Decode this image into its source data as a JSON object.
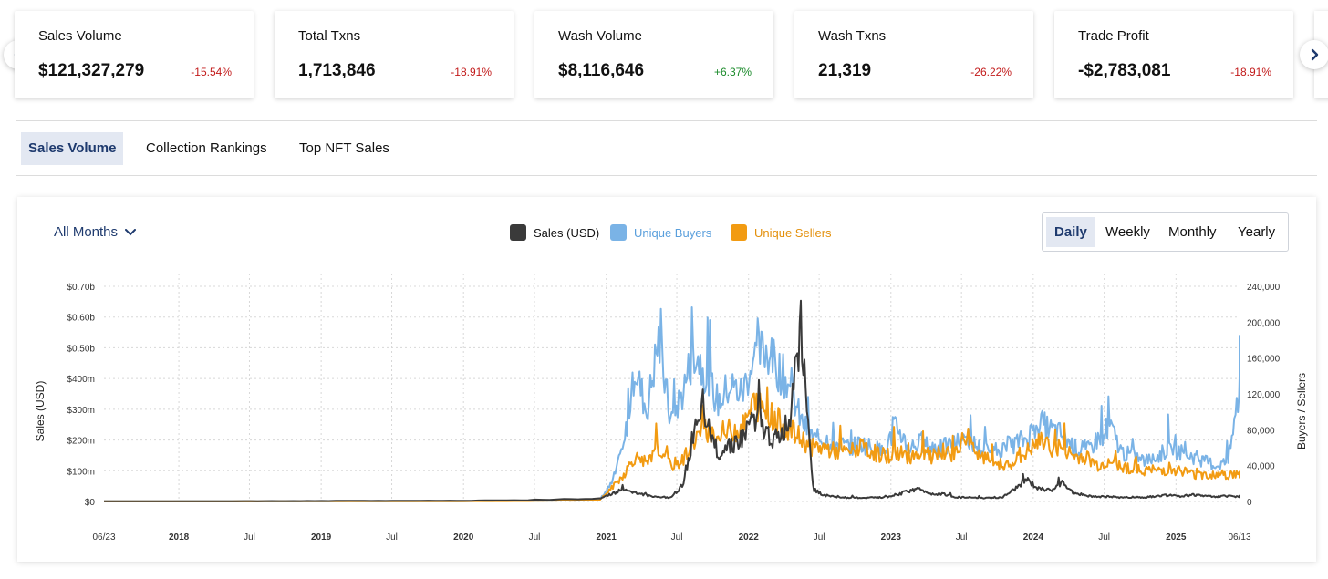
{
  "carousel": {
    "prev_icon": "chevron-left-icon",
    "next_icon": "chevron-right-icon"
  },
  "cards": [
    {
      "label": "Sales Volume",
      "value": "$121,327,279",
      "change": "-15.54%",
      "direction": "down"
    },
    {
      "label": "Total Txns",
      "value": "1,713,846",
      "change": "-18.91%",
      "direction": "down"
    },
    {
      "label": "Wash Volume",
      "value": "$8,116,646",
      "change": "+6.37%",
      "direction": "up"
    },
    {
      "label": "Wash Txns",
      "value": "21,319",
      "change": "-26.22%",
      "direction": "down"
    },
    {
      "label": "Trade Profit",
      "value": "-$2,783,081",
      "change": "-18.91%",
      "direction": "down"
    }
  ],
  "tabs": [
    "Sales Volume",
    "Collection Rankings",
    "Top NFT Sales"
  ],
  "active_tab": "Sales Volume",
  "filter": {
    "label": "All Months",
    "icon": "chevron-down-icon"
  },
  "periods": [
    "Daily",
    "Weekly",
    "Monthly",
    "Yearly"
  ],
  "active_period": "Daily",
  "colors": {
    "sales": "#3a3a3a",
    "buyers": "#7ab3e6",
    "sellers": "#f29b12",
    "accent": "#1e3a6e",
    "negative": "#c21a1a",
    "positive": "#1a8a2a"
  },
  "chart_data": {
    "type": "line",
    "legend": [
      {
        "name": "Sales (USD)",
        "color": "#3a3a3a"
      },
      {
        "name": "Unique Buyers",
        "color": "#7ab3e6"
      },
      {
        "name": "Unique Sellers",
        "color": "#f29b12"
      }
    ],
    "legend_position": "top-center",
    "ylabel_left": "Sales (USD)",
    "ylabel_right": "Buyers / Sellers",
    "y_left_ticks": [
      "$0",
      "$100m",
      "$200m",
      "$300m",
      "$400m",
      "$0.50b",
      "$0.60b",
      "$0.70b"
    ],
    "y_right_ticks": [
      "0",
      "40,000",
      "80,000",
      "120,000",
      "160,000",
      "200,000",
      "240,000"
    ],
    "x_ticks": [
      "06/23",
      "2018",
      "Jul",
      "2019",
      "Jul",
      "2020",
      "Jul",
      "2021",
      "Jul",
      "2022",
      "Jul",
      "2023",
      "Jul",
      "2024",
      "Jul",
      "2025",
      "06/13"
    ],
    "x_range": [
      "2017-06-23",
      "2025-06-13"
    ],
    "ylim_left": [
      0,
      700000000
    ],
    "ylim_right": [
      0,
      240000
    ],
    "grid": true,
    "x": [
      "2017-06",
      "2017-12",
      "2018-06",
      "2018-12",
      "2019-06",
      "2019-12",
      "2020-06",
      "2020-12",
      "2021-01",
      "2021-02",
      "2021-03",
      "2021-04",
      "2021-05",
      "2021-06",
      "2021-07",
      "2021-08",
      "2021-09",
      "2021-10",
      "2021-11",
      "2021-12",
      "2022-01",
      "2022-02",
      "2022-03",
      "2022-04",
      "2022-05",
      "2022-06",
      "2022-07",
      "2022-08",
      "2022-09",
      "2022-10",
      "2022-11",
      "2022-12",
      "2023-01",
      "2023-02",
      "2023-03",
      "2023-04",
      "2023-05",
      "2023-06",
      "2023-07",
      "2023-08",
      "2023-09",
      "2023-10",
      "2023-11",
      "2023-12",
      "2024-01",
      "2024-02",
      "2024-03",
      "2024-04",
      "2024-05",
      "2024-06",
      "2024-07",
      "2024-08",
      "2024-09",
      "2024-10",
      "2024-11",
      "2024-12",
      "2025-01",
      "2025-02",
      "2025-03",
      "2025-04",
      "2025-05",
      "2025-06"
    ],
    "series": [
      {
        "name": "Sales (USD)",
        "axis": "left",
        "values": [
          500000,
          800000,
          1000000,
          1500000,
          2000000,
          2500000,
          4000000,
          10000000,
          25000000,
          40000000,
          30000000,
          20000000,
          15000000,
          12000000,
          50000000,
          230000000,
          250000000,
          160000000,
          190000000,
          200000000,
          280000000,
          220000000,
          200000000,
          250000000,
          560000000,
          40000000,
          20000000,
          15000000,
          12000000,
          12000000,
          12000000,
          14000000,
          20000000,
          35000000,
          40000000,
          25000000,
          25000000,
          15000000,
          12000000,
          12000000,
          11000000,
          14000000,
          40000000,
          70000000,
          40000000,
          35000000,
          60000000,
          25000000,
          20000000,
          15000000,
          16000000,
          13000000,
          14000000,
          14000000,
          18000000,
          20000000,
          16000000,
          22000000,
          18000000,
          16000000,
          18000000,
          16000000
        ]
      },
      {
        "name": "Unique Buyers",
        "axis": "right",
        "values": [
          100,
          150,
          200,
          250,
          300,
          400,
          600,
          2000,
          20000,
          60000,
          150000,
          100000,
          180000,
          90000,
          120000,
          170000,
          140000,
          110000,
          130000,
          120000,
          160000,
          170000,
          150000,
          130000,
          90000,
          70000,
          70000,
          65000,
          60000,
          65000,
          60000,
          55000,
          85000,
          60000,
          65000,
          60000,
          60000,
          65000,
          70000,
          60000,
          55000,
          60000,
          65000,
          70000,
          90000,
          80000,
          75000,
          60000,
          55000,
          70000,
          85000,
          55000,
          50000,
          45000,
          50000,
          60000,
          55000,
          50000,
          45000,
          40000,
          45000,
          130000
        ]
      },
      {
        "name": "Unique Sellers",
        "axis": "right",
        "values": [
          80,
          120,
          150,
          200,
          250,
          300,
          500,
          1500,
          15000,
          30000,
          50000,
          40000,
          60000,
          40000,
          45000,
          70000,
          80000,
          70000,
          80000,
          80000,
          110000,
          100000,
          90000,
          80000,
          70000,
          60000,
          60000,
          55000,
          55000,
          60000,
          55000,
          50000,
          55000,
          50000,
          55000,
          50000,
          50000,
          55000,
          75000,
          50000,
          45000,
          40000,
          45000,
          55000,
          65000,
          60000,
          60000,
          50000,
          50000,
          40000,
          45000,
          40000,
          35000,
          35000,
          35000,
          35000,
          35000,
          30000,
          30000,
          30000,
          30000,
          30000
        ]
      }
    ]
  }
}
